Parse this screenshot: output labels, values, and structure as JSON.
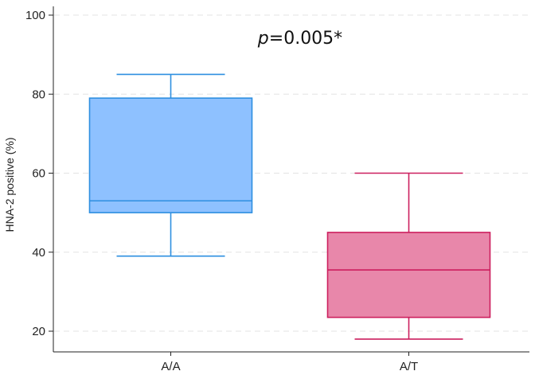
{
  "chart_data": {
    "type": "box",
    "ylabel": "HNA-2 positive (%)",
    "xlabel": "",
    "ylim": [
      15,
      103
    ],
    "yticks": [
      20,
      40,
      60,
      80,
      100
    ],
    "grid": "horizontal dashed",
    "annotation": {
      "p_label": "p",
      "p_value_text": "=0.005*"
    },
    "categories": [
      "A/A",
      "A/T"
    ],
    "groups": [
      {
        "category": "A/A",
        "whisker_low": 39,
        "q1": 50,
        "median": 53,
        "q3": 79,
        "whisker_high": 85,
        "fill": "#8ec1ff",
        "stroke": "#2e8fe0"
      },
      {
        "category": "A/T",
        "whisker_low": 18,
        "q1": 23.5,
        "median": 35.5,
        "q3": 45,
        "whisker_high": 60,
        "fill": "#e887aa",
        "stroke": "#cc1f5e"
      }
    ]
  }
}
